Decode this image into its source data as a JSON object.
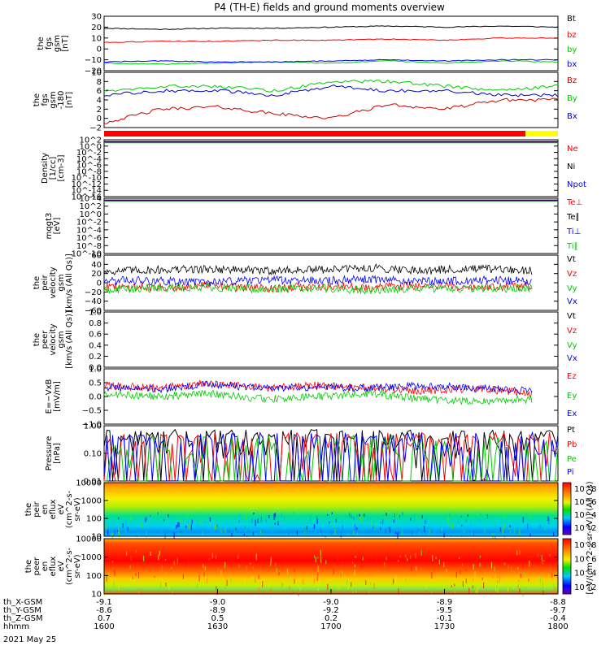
{
  "chart_data": {
    "title": "P4 (TH-E) fields and ground moments overview",
    "date_label": "2021 May 25",
    "time_axis": {
      "type": "time",
      "range": [
        "1600",
        "1800"
      ],
      "row_labels": [
        "th_X-GSM",
        "th_Y-GSM",
        "th_Z-GSM",
        "hhmm"
      ],
      "columns": [
        [
          "-9.1",
          "-8.6",
          "0.7",
          "1600"
        ],
        [
          "-9.0",
          "-8.9",
          "0.5",
          "1630"
        ],
        [
          "-9.0",
          "-9.2",
          "0.2",
          "1700"
        ],
        [
          "-8.9",
          "-9.5",
          "-0.1",
          "1730"
        ],
        [
          "-8.8",
          "-9.7",
          "-0.4",
          "1800"
        ]
      ]
    },
    "panels": [
      {
        "id": "fgs-gsm",
        "type": "line",
        "ylabel": [
          "the",
          "fgs",
          "gsm",
          "[nT]"
        ],
        "ylim": [
          -20,
          30
        ],
        "yticks": [
          "30",
          "20",
          "10",
          "0",
          "−10",
          "−20"
        ],
        "series": [
          {
            "name": "Bt",
            "color": "#000000",
            "values": [
              19,
              18,
              19,
              19,
              20,
              21,
              20,
              21,
              20
            ]
          },
          {
            "name": "bz",
            "color": "#ff0000",
            "values": [
              6,
              7,
              7,
              8,
              8,
              9,
              8,
              10,
              10
            ]
          },
          {
            "name": "by",
            "color": "#00cc00",
            "values": [
              -13,
              -14,
              -13,
              -12,
              -13,
              -11,
              -13,
              -11,
              -12
            ]
          },
          {
            "name": "bx",
            "color": "#0000ff",
            "values": [
              -12,
              -11,
              -12,
              -12,
              -11,
              -10,
              -11,
              -10,
              -10
            ]
          }
        ]
      },
      {
        "id": "fgs-gsm-zoom",
        "type": "line",
        "ylabel": [
          "the",
          "fgs",
          "gsm",
          "-180",
          "[nT]"
        ],
        "ylim": [
          -2,
          10
        ],
        "yticks": [
          "10",
          "8",
          "6",
          "4",
          "2",
          "0",
          "−2"
        ],
        "series": [
          {
            "name": "Bz",
            "color": "#cc0000",
            "values": [
              -1,
              2,
              2.5,
              1,
              0,
              3,
              2,
              4,
              4
            ]
          },
          {
            "name": "By",
            "color": "#00cc00",
            "values": [
              6,
              7,
              7,
              6,
              8,
              8,
              7,
              6,
              7
            ]
          },
          {
            "name": "Bx",
            "color": "#0000cc",
            "values": [
              5,
              6,
              6,
              5,
              7,
              6,
              6,
              5,
              5
            ]
          }
        ]
      },
      {
        "id": "density",
        "type": "line",
        "ylabel": [
          "Density",
          "[1/cc]",
          "[cm-3]"
        ],
        "scale": "log",
        "ylim": [
          1e-16,
          100.0
        ],
        "yticks": [
          "10^2",
          "10^0",
          "10^-2",
          "10^-4",
          "10^-6",
          "10^-8",
          "10^-10",
          "10^-12",
          "10^-14",
          "10^-16"
        ],
        "series": [
          {
            "name": "Ne",
            "color": "#ff0000"
          },
          {
            "name": "Ni",
            "color": "#000000"
          },
          {
            "name": "Npot",
            "color": "#0000ff"
          }
        ]
      },
      {
        "id": "temperature",
        "type": "line",
        "ylabel": [
          "mqgt3",
          "[eV]"
        ],
        "scale": "log",
        "ylim": [
          1e-10,
          10000.0
        ],
        "yticks": [
          "10^4",
          "10^2",
          "10^0",
          "10^-2",
          "10^-4",
          "10^-6",
          "10^-8",
          "10^-10"
        ],
        "series": [
          {
            "name": "Te⊥",
            "color": "#ff0000"
          },
          {
            "name": "Te∥",
            "color": "#000000"
          },
          {
            "name": "Ti⊥",
            "color": "#0000ff"
          },
          {
            "name": "Ti∥",
            "color": "#00cc00"
          }
        ]
      },
      {
        "id": "ion-velocity",
        "type": "line",
        "ylabel": [
          "the",
          "peir",
          "velocity",
          "gsm",
          "[km/s (All Qs)]"
        ],
        "ylim": [
          -60,
          60
        ],
        "yticks": [
          "60",
          "40",
          "20",
          "0",
          "−20",
          "−40",
          "−60"
        ],
        "series": [
          {
            "name": "Vt",
            "color": "#000000",
            "values": [
              25,
              28,
              30,
              26,
              28,
              32,
              27,
              30,
              26
            ]
          },
          {
            "name": "Vz",
            "color": "#ff0000",
            "values": [
              -8,
              -10,
              -6,
              -12,
              -8,
              -10,
              -6,
              -10,
              -8
            ]
          },
          {
            "name": "Vy",
            "color": "#00cc00",
            "values": [
              -15,
              -12,
              -10,
              -14,
              -12,
              -16,
              -12,
              -14,
              -12
            ]
          },
          {
            "name": "Vx",
            "color": "#0000ff",
            "values": [
              5,
              4,
              2,
              6,
              4,
              8,
              2,
              6,
              4
            ]
          }
        ]
      },
      {
        "id": "electron-velocity",
        "type": "line",
        "ylabel": [
          "the",
          "peer",
          "velocity",
          "gsm",
          "[km/s (All Qs)]"
        ],
        "ylim": [
          0,
          1
        ],
        "yticks": [
          "1.0",
          "0.8",
          "0.6",
          "0.4",
          "0.2",
          "0.0"
        ],
        "series": [
          {
            "name": "Vt",
            "color": "#000000"
          },
          {
            "name": "Vz",
            "color": "#ff0000"
          },
          {
            "name": "Vy",
            "color": "#00cc00"
          },
          {
            "name": "Vx",
            "color": "#0000ff"
          }
        ]
      },
      {
        "id": "e-field",
        "type": "line",
        "ylabel": [
          "E=−VxB",
          "[mV/m]"
        ],
        "ylim": [
          -1,
          1
        ],
        "yticks": [
          "1.0",
          "0.5",
          "0.0",
          "−0.5",
          "−1.0"
        ],
        "series": [
          {
            "name": "Ez",
            "color": "#ff0000",
            "values": [
              0.4,
              0.3,
              0.5,
              0.3,
              0.4,
              0.3,
              0.2,
              0.3,
              0.1
            ]
          },
          {
            "name": "Ey",
            "color": "#00cc00",
            "values": [
              0.1,
              0.0,
              0.1,
              -0.1,
              0.0,
              0.1,
              -0.1,
              -0.2,
              -0.1
            ]
          },
          {
            "name": "Ex",
            "color": "#0000ff",
            "values": [
              0.35,
              0.25,
              0.45,
              0.3,
              0.35,
              0.3,
              0.4,
              0.3,
              0.2
            ]
          }
        ]
      },
      {
        "id": "pressure",
        "type": "line",
        "ylabel": [
          "Pressure",
          "[nPa]"
        ],
        "scale": "log",
        "ylim": [
          0.01,
          1.0
        ],
        "yticks": [
          "1.00",
          "0.10",
          "0.01"
        ],
        "series": [
          {
            "name": "Pt",
            "color": "#000000",
            "values": [
              0.32,
              0.33,
              0.32,
              0.33,
              0.33,
              0.34,
              0.33,
              0.34,
              0.34
            ]
          },
          {
            "name": "Pb",
            "color": "#ff0000",
            "values": [
              0.14,
              0.14,
              0.15,
              0.15,
              0.16,
              0.17,
              0.17,
              0.18,
              0.18
            ]
          },
          {
            "name": "Pe",
            "color": "#00cc00",
            "values": [
              0.04,
              0.045,
              0.05,
              0.05,
              0.055,
              0.05,
              0.05,
              0.045,
              0.05
            ]
          },
          {
            "name": "Pi",
            "color": "#0000ff",
            "values": [
              0.15,
              0.15,
              0.15,
              0.16,
              0.16,
              0.17,
              0.16,
              0.17,
              0.17
            ]
          }
        ]
      },
      {
        "id": "ion-eflux",
        "type": "heatmap",
        "ylabel": [
          "the",
          "peir",
          "en",
          "eflux",
          "eV",
          "(cm^2-s-",
          "sr-eV)"
        ],
        "yticks": [
          "10000",
          "1000",
          "100",
          "10"
        ],
        "colorbar_ticks": [
          "10^8",
          "10^6",
          "10^4",
          "10^2"
        ],
        "colorbar_label": "[eV/(cm^2-s-sr-eV)] (All Qs)"
      },
      {
        "id": "electron-eflux",
        "type": "heatmap",
        "ylabel": [
          "the",
          "peer",
          "en",
          "eflux",
          "eV",
          "(cm^2-s-",
          "sr-eV)"
        ],
        "yticks": [
          "10000",
          "1000",
          "100",
          "10"
        ],
        "colorbar_ticks": [
          "10^8",
          "10^6",
          "10^4",
          "10^2"
        ],
        "colorbar_label": "[eV/(cm^2-s-sr-eV)]"
      }
    ]
  }
}
